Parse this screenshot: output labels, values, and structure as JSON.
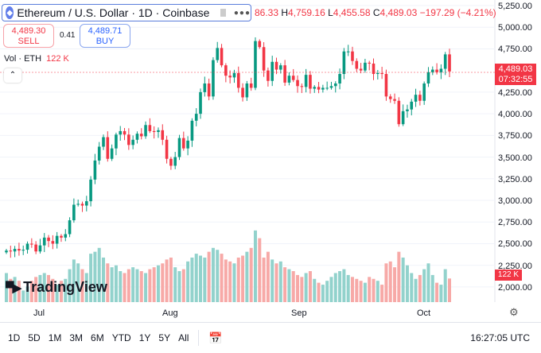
{
  "symbol": {
    "title": "Ethereum / U.S. Dollar · 1D · Coinbase",
    "icon": "ethereum-icon"
  },
  "ohlc": {
    "open_partial": "86.33",
    "h_label": "H",
    "high": "4,759.16",
    "l_label": "L",
    "low": "4,455.58",
    "c_label": "C",
    "close": "4,489.03",
    "change": "−197.29 (−4.21%)"
  },
  "trade": {
    "sell_price": "4,489.30",
    "sell_label": "SELL",
    "spread": "0.41",
    "buy_price": "4,489.71",
    "buy_label": "BUY"
  },
  "volume": {
    "label": "Vol · ETH",
    "value": "122 K"
  },
  "price_axis": [
    "5,250.00",
    "5,000.00",
    "4,750.00",
    "4,250.00",
    "4,000.00",
    "3,750.00",
    "3,500.00",
    "3,250.00",
    "3,000.00",
    "2,750.00",
    "2,500.00",
    "2,250.00",
    "2,000.00"
  ],
  "last_price": "4,489.03",
  "countdown": "07:32:55",
  "vol_tag": "122 K",
  "months": [
    "Jul",
    "Aug",
    "Sep",
    "Oct"
  ],
  "logo": "TradingView",
  "ranges": [
    "1D",
    "5D",
    "1M",
    "3M",
    "6M",
    "YTD",
    "1Y",
    "5Y",
    "All"
  ],
  "clock": "16:27:05 UTC",
  "colors": {
    "up": "#089981",
    "down": "#f23645",
    "vol_up": "#92d2cc",
    "vol_down": "#f7a9a7"
  },
  "chart_data": {
    "type": "candlestick",
    "start": "Jun 24",
    "interval": "1D",
    "ylim": [
      2000,
      5250
    ],
    "closes": [
      2420,
      2410,
      2440,
      2420,
      2430,
      2500,
      2490,
      2410,
      2480,
      2570,
      2530,
      2500,
      2590,
      2570,
      2610,
      2770,
      2950,
      2960,
      2940,
      2990,
      3240,
      3460,
      3620,
      3730,
      3480,
      3600,
      3760,
      3800,
      3760,
      3640,
      3700,
      3770,
      3740,
      3870,
      3800,
      3790,
      3810,
      3700,
      3480,
      3400,
      3500,
      3720,
      3600,
      3690,
      3920,
      4000,
      4250,
      4350,
      4200,
      4620,
      4760,
      4560,
      4440,
      4420,
      4470,
      4300,
      4190,
      4350,
      4300,
      4840,
      4770,
      4500,
      4380,
      4600,
      4510,
      4560,
      4360,
      4440,
      4390,
      4320,
      4310,
      4450,
      4290,
      4310,
      4280,
      4300,
      4300,
      4320,
      4350,
      4460,
      4720,
      4720,
      4610,
      4520,
      4500,
      4590,
      4580,
      4460,
      4470,
      4460,
      4200,
      4170,
      4150,
      3880,
      4030,
      4050,
      4140,
      4220,
      4150,
      4350,
      4480,
      4510,
      4480,
      4520,
      4686.33,
      4489.03
    ],
    "volumes_k": [
      150,
      120,
      130,
      110,
      60,
      80,
      110,
      130,
      140,
      150,
      140,
      120,
      90,
      110,
      120,
      170,
      220,
      200,
      170,
      150,
      250,
      260,
      280,
      230,
      200,
      180,
      190,
      160,
      150,
      170,
      180,
      170,
      160,
      150,
      170,
      180,
      190,
      200,
      220,
      230,
      180,
      160,
      170,
      210,
      230,
      250,
      240,
      230,
      260,
      280,
      270,
      250,
      220,
      210,
      200,
      230,
      240,
      260,
      280,
      370,
      330,
      230,
      260,
      220,
      200,
      210,
      180,
      170,
      160,
      140,
      130,
      150,
      160,
      120,
      100,
      90,
      110,
      130,
      150,
      160,
      170,
      140,
      130,
      120,
      110,
      100,
      130,
      120,
      110,
      90,
      200,
      210,
      180,
      260,
      230,
      190,
      150,
      120,
      140,
      170,
      200,
      140,
      100,
      90,
      170,
      122
    ]
  }
}
